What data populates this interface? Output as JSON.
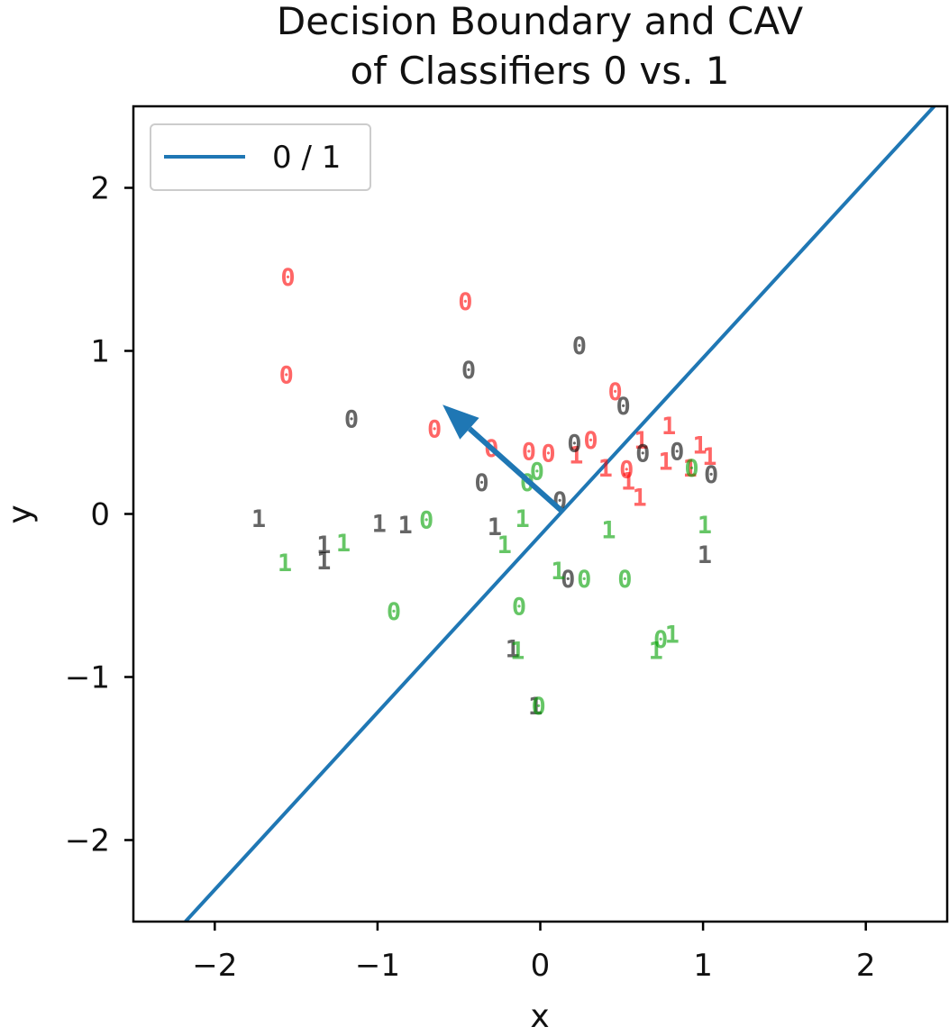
{
  "chart_data": {
    "type": "scatter",
    "title_line1": "Decision Boundary and CAV",
    "title_line2": "of Classifiers 0 vs. 1",
    "xlabel": "x",
    "ylabel": "y",
    "xlim": [
      -2.5,
      2.5
    ],
    "ylim": [
      -2.5,
      2.5
    ],
    "xticks": [
      -2,
      -1,
      0,
      1,
      2
    ],
    "yticks": [
      -2,
      -1,
      0,
      1,
      2
    ],
    "xtick_labels": [
      "−2",
      "−1",
      "0",
      "1",
      "2"
    ],
    "ytick_labels": [
      "−2",
      "−1",
      "0",
      "1",
      "2"
    ],
    "grid": false,
    "legend": {
      "position": "top-left",
      "entries": [
        {
          "label": "0 / 1",
          "color": "#1f77b4"
        }
      ]
    },
    "boundary_line": {
      "x": [
        -2.18,
        2.42
      ],
      "y": [
        -2.5,
        2.5
      ],
      "color": "#1f77b4"
    },
    "cav_arrow": {
      "from": [
        0.13,
        0.02
      ],
      "to": [
        -0.6,
        0.67
      ],
      "color": "#1f77b4"
    },
    "colors": {
      "red": "#ff0000",
      "black": "#000000",
      "green": "#00a000"
    },
    "points": [
      {
        "x": -1.55,
        "y": 1.45,
        "label": "0",
        "color": "red"
      },
      {
        "x": -1.56,
        "y": 0.85,
        "label": "0",
        "color": "red"
      },
      {
        "x": -0.46,
        "y": 1.3,
        "label": "0",
        "color": "red"
      },
      {
        "x": -0.65,
        "y": 0.52,
        "label": "0",
        "color": "red"
      },
      {
        "x": -0.3,
        "y": 0.4,
        "label": "0",
        "color": "red"
      },
      {
        "x": -0.07,
        "y": 0.38,
        "label": "0",
        "color": "red"
      },
      {
        "x": 0.05,
        "y": 0.37,
        "label": "0",
        "color": "red"
      },
      {
        "x": 0.31,
        "y": 0.45,
        "label": "0",
        "color": "red"
      },
      {
        "x": 0.46,
        "y": 0.75,
        "label": "0",
        "color": "red"
      },
      {
        "x": 0.22,
        "y": 0.36,
        "label": "1",
        "color": "red"
      },
      {
        "x": 0.4,
        "y": 0.28,
        "label": "1",
        "color": "red"
      },
      {
        "x": 0.53,
        "y": 0.27,
        "label": "0",
        "color": "red"
      },
      {
        "x": 0.54,
        "y": 0.2,
        "label": "1",
        "color": "red"
      },
      {
        "x": 0.61,
        "y": 0.1,
        "label": "1",
        "color": "red"
      },
      {
        "x": 0.62,
        "y": 0.45,
        "label": "1",
        "color": "red"
      },
      {
        "x": 0.79,
        "y": 0.54,
        "label": "1",
        "color": "red"
      },
      {
        "x": 0.77,
        "y": 0.32,
        "label": "1",
        "color": "red"
      },
      {
        "x": 0.98,
        "y": 0.42,
        "label": "1",
        "color": "red"
      },
      {
        "x": 1.04,
        "y": 0.35,
        "label": "1",
        "color": "red"
      },
      {
        "x": 0.92,
        "y": 0.28,
        "label": "1",
        "color": "red"
      },
      {
        "x": -1.16,
        "y": 0.58,
        "label": "0",
        "color": "black"
      },
      {
        "x": -0.44,
        "y": 0.88,
        "label": "0",
        "color": "black"
      },
      {
        "x": 0.24,
        "y": 1.03,
        "label": "0",
        "color": "black"
      },
      {
        "x": 0.51,
        "y": 0.66,
        "label": "0",
        "color": "black"
      },
      {
        "x": 0.21,
        "y": 0.43,
        "label": "0",
        "color": "black"
      },
      {
        "x": -0.36,
        "y": 0.19,
        "label": "0",
        "color": "black"
      },
      {
        "x": 0.12,
        "y": 0.08,
        "label": "0",
        "color": "black"
      },
      {
        "x": 0.63,
        "y": 0.37,
        "label": "0",
        "color": "black"
      },
      {
        "x": 0.84,
        "y": 0.38,
        "label": "0",
        "color": "black"
      },
      {
        "x": 1.05,
        "y": 0.24,
        "label": "0",
        "color": "black"
      },
      {
        "x": 0.17,
        "y": -0.4,
        "label": "0",
        "color": "black"
      },
      {
        "x": -1.73,
        "y": -0.03,
        "label": "1",
        "color": "black"
      },
      {
        "x": -0.99,
        "y": -0.06,
        "label": "1",
        "color": "black"
      },
      {
        "x": -0.83,
        "y": -0.07,
        "label": "1",
        "color": "black"
      },
      {
        "x": -1.33,
        "y": -0.19,
        "label": "1",
        "color": "black"
      },
      {
        "x": -1.33,
        "y": -0.29,
        "label": "1",
        "color": "black"
      },
      {
        "x": -0.28,
        "y": -0.08,
        "label": "1",
        "color": "black"
      },
      {
        "x": 1.01,
        "y": -0.25,
        "label": "1",
        "color": "black"
      },
      {
        "x": -0.17,
        "y": -0.83,
        "label": "1",
        "color": "black"
      },
      {
        "x": -0.03,
        "y": -1.18,
        "label": "1",
        "color": "black"
      },
      {
        "x": -0.7,
        "y": -0.04,
        "label": "0",
        "color": "green"
      },
      {
        "x": -0.02,
        "y": 0.26,
        "label": "0",
        "color": "green"
      },
      {
        "x": -0.08,
        "y": 0.19,
        "label": "0",
        "color": "green"
      },
      {
        "x": 0.27,
        "y": -0.4,
        "label": "0",
        "color": "green"
      },
      {
        "x": 0.52,
        "y": -0.4,
        "label": "0",
        "color": "green"
      },
      {
        "x": -0.13,
        "y": -0.57,
        "label": "0",
        "color": "green"
      },
      {
        "x": -0.9,
        "y": -0.6,
        "label": "0",
        "color": "green"
      },
      {
        "x": 0.93,
        "y": 0.28,
        "label": "0",
        "color": "green"
      },
      {
        "x": 0.74,
        "y": -0.77,
        "label": "0",
        "color": "green"
      },
      {
        "x": -0.01,
        "y": -1.18,
        "label": "0",
        "color": "green"
      },
      {
        "x": -1.57,
        "y": -0.3,
        "label": "1",
        "color": "green"
      },
      {
        "x": -1.21,
        "y": -0.18,
        "label": "1",
        "color": "green"
      },
      {
        "x": -0.11,
        "y": -0.03,
        "label": "1",
        "color": "green"
      },
      {
        "x": -0.22,
        "y": -0.19,
        "label": "1",
        "color": "green"
      },
      {
        "x": 0.11,
        "y": -0.35,
        "label": "1",
        "color": "green"
      },
      {
        "x": 0.42,
        "y": -0.1,
        "label": "1",
        "color": "green"
      },
      {
        "x": 1.01,
        "y": -0.07,
        "label": "1",
        "color": "green"
      },
      {
        "x": -0.14,
        "y": -0.84,
        "label": "1",
        "color": "green"
      },
      {
        "x": 0.71,
        "y": -0.84,
        "label": "1",
        "color": "green"
      },
      {
        "x": 0.81,
        "y": -0.74,
        "label": "1",
        "color": "green"
      }
    ]
  }
}
